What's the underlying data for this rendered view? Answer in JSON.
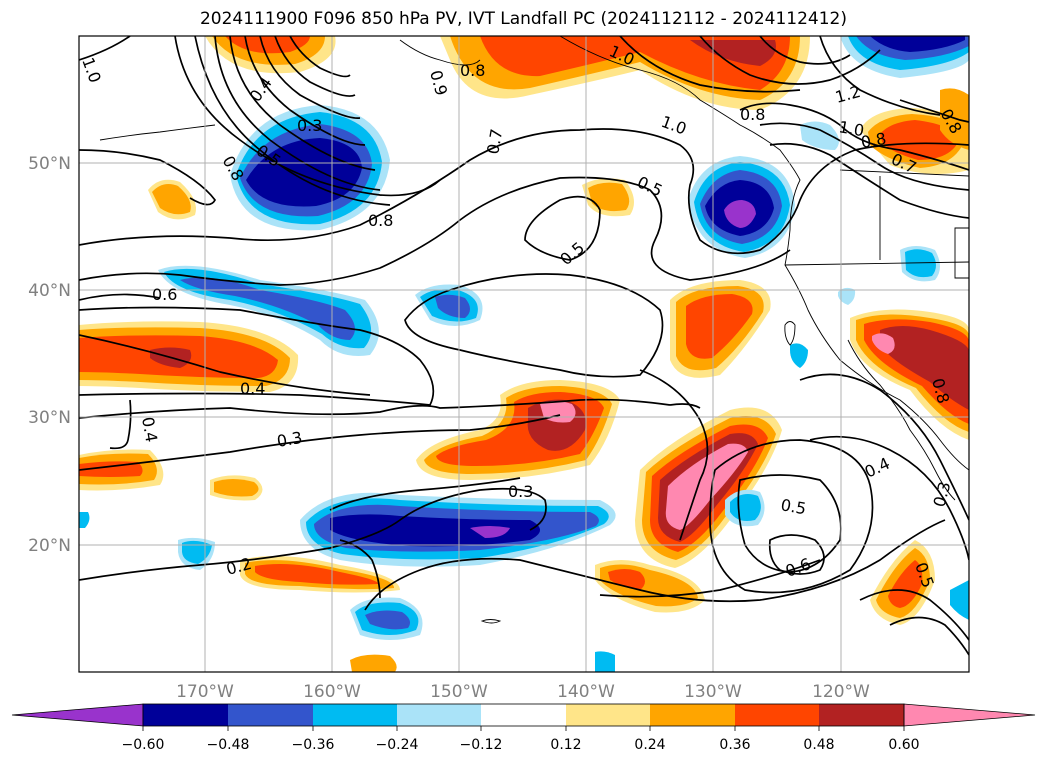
{
  "title": "2024111900 F096 850 hPa PV, IVT Landfall PC (2024112112 - 2024112412)",
  "map": {
    "lon_labels": [
      "170°W",
      "160°W",
      "150°W",
      "140°W",
      "130°W",
      "120°W"
    ],
    "lat_labels": [
      "50°N",
      "40°N",
      "30°N",
      "20°N"
    ],
    "label_color": "#808080",
    "grid_color": "#b0b0b0"
  },
  "contour_labels": [
    "1.0",
    "0.4",
    "0.3",
    "0.5",
    "0.8",
    "0.8",
    "0.9",
    "0.8",
    "0.7",
    "0.5",
    "0.5",
    "1.0",
    "1.0",
    "0.8",
    "1.2",
    "1.0",
    "0.8",
    "0.7",
    "0.8",
    "0.6",
    "0.4",
    "0.4",
    "0.3",
    "0.3",
    "0.2",
    "0.8",
    "0.4",
    "0.5",
    "0.6",
    "0.3",
    "0.5"
  ],
  "colorbar": {
    "ticks": [
      "−0.60",
      "−0.48",
      "−0.36",
      "−0.24",
      "−0.12",
      "0.12",
      "0.24",
      "0.36",
      "0.48",
      "0.60"
    ],
    "colors": {
      "lt-0.60": "#9933cc",
      "-0.60_-0.48": "#000099",
      "-0.48_-0.36": "#3355cc",
      "-0.36_-0.24": "#00bbf2",
      "-0.24_-0.12": "#aae3f8",
      "-0.12_0.12": "#ffffff",
      "0.12_0.24": "#ffe589",
      "0.24_0.36": "#ffa500",
      "0.36_0.48": "#ff4500",
      "0.48_0.60": "#b22222",
      "gt0.60": "#ff88b0"
    }
  }
}
